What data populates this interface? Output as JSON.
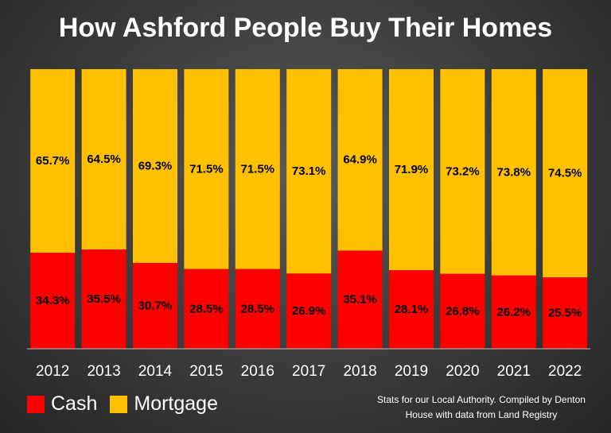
{
  "colors": {
    "cash": "#ff0000",
    "mortgage": "#ffc000",
    "label_text": "#000000",
    "axis_text": "#ffffff"
  },
  "legend": {
    "cash_label": "Cash",
    "mortgage_label": "Mortgage"
  },
  "source_note": {
    "line1": "Stats for our Local Authority. Compiled by Denton",
    "line2": "House with data from Land Registry"
  },
  "chart_data": {
    "type": "bar",
    "stacked": true,
    "title": "How Ashford People Buy Their Homes",
    "categories": [
      "2012",
      "2013",
      "2014",
      "2015",
      "2016",
      "2017",
      "2018",
      "2019",
      "2020",
      "2021",
      "2022"
    ],
    "series": [
      {
        "name": "Cash",
        "color": "#ff0000",
        "values": [
          34.3,
          35.5,
          30.7,
          28.5,
          28.5,
          26.9,
          35.1,
          28.1,
          26.8,
          26.2,
          25.5
        ],
        "labels": [
          "34.3%",
          "35.5%",
          "30.7%",
          "28.5%",
          "28.5%",
          "26.9%",
          "35.1%",
          "28.1%",
          "26.8%",
          "26.2%",
          "25.5%"
        ]
      },
      {
        "name": "Mortgage",
        "color": "#ffc000",
        "values": [
          65.7,
          64.5,
          69.3,
          71.5,
          71.5,
          73.1,
          64.9,
          71.9,
          73.2,
          73.8,
          74.5
        ],
        "labels": [
          "65.7%",
          "64.5%",
          "69.3%",
          "71.5%",
          "71.5%",
          "73.1%",
          "64.9%",
          "71.9%",
          "73.2%",
          "73.8%",
          "74.5%"
        ]
      }
    ],
    "ylim": [
      0,
      100
    ],
    "grid": false,
    "legend_position": "bottom-left"
  }
}
